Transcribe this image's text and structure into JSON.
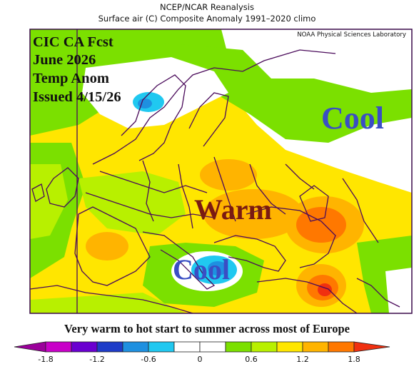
{
  "header": {
    "line1": "NCEP/NCAR Reanalysis",
    "line2": "Surface air (C) Composite Anomaly 1991–2020 climo"
  },
  "credit": "NOAA Physical Sciences Laboratory",
  "forecast_labels": [
    "CIC CA Fcst",
    "June 2026",
    "Temp Anom",
    "Issued 4/15/26"
  ],
  "regions": {
    "cool_north": "Cool",
    "warm": "Warm",
    "cool_south": "Cool"
  },
  "caption": "Very warm to hot start to summer across most of Europe",
  "colorbar": {
    "tick_labels": [
      "-1.8",
      "-1.2",
      "-0.6",
      "0",
      "0.6",
      "1.2",
      "1.8"
    ],
    "colors": [
      "#9b009b",
      "#c800c8",
      "#6a00d0",
      "#1e3cc8",
      "#1e90e0",
      "#20c8f0",
      "#ffffff",
      "#ffffff",
      "#7be000",
      "#b8f000",
      "#ffe600",
      "#ffb400",
      "#ff7800",
      "#f03010"
    ]
  }
}
